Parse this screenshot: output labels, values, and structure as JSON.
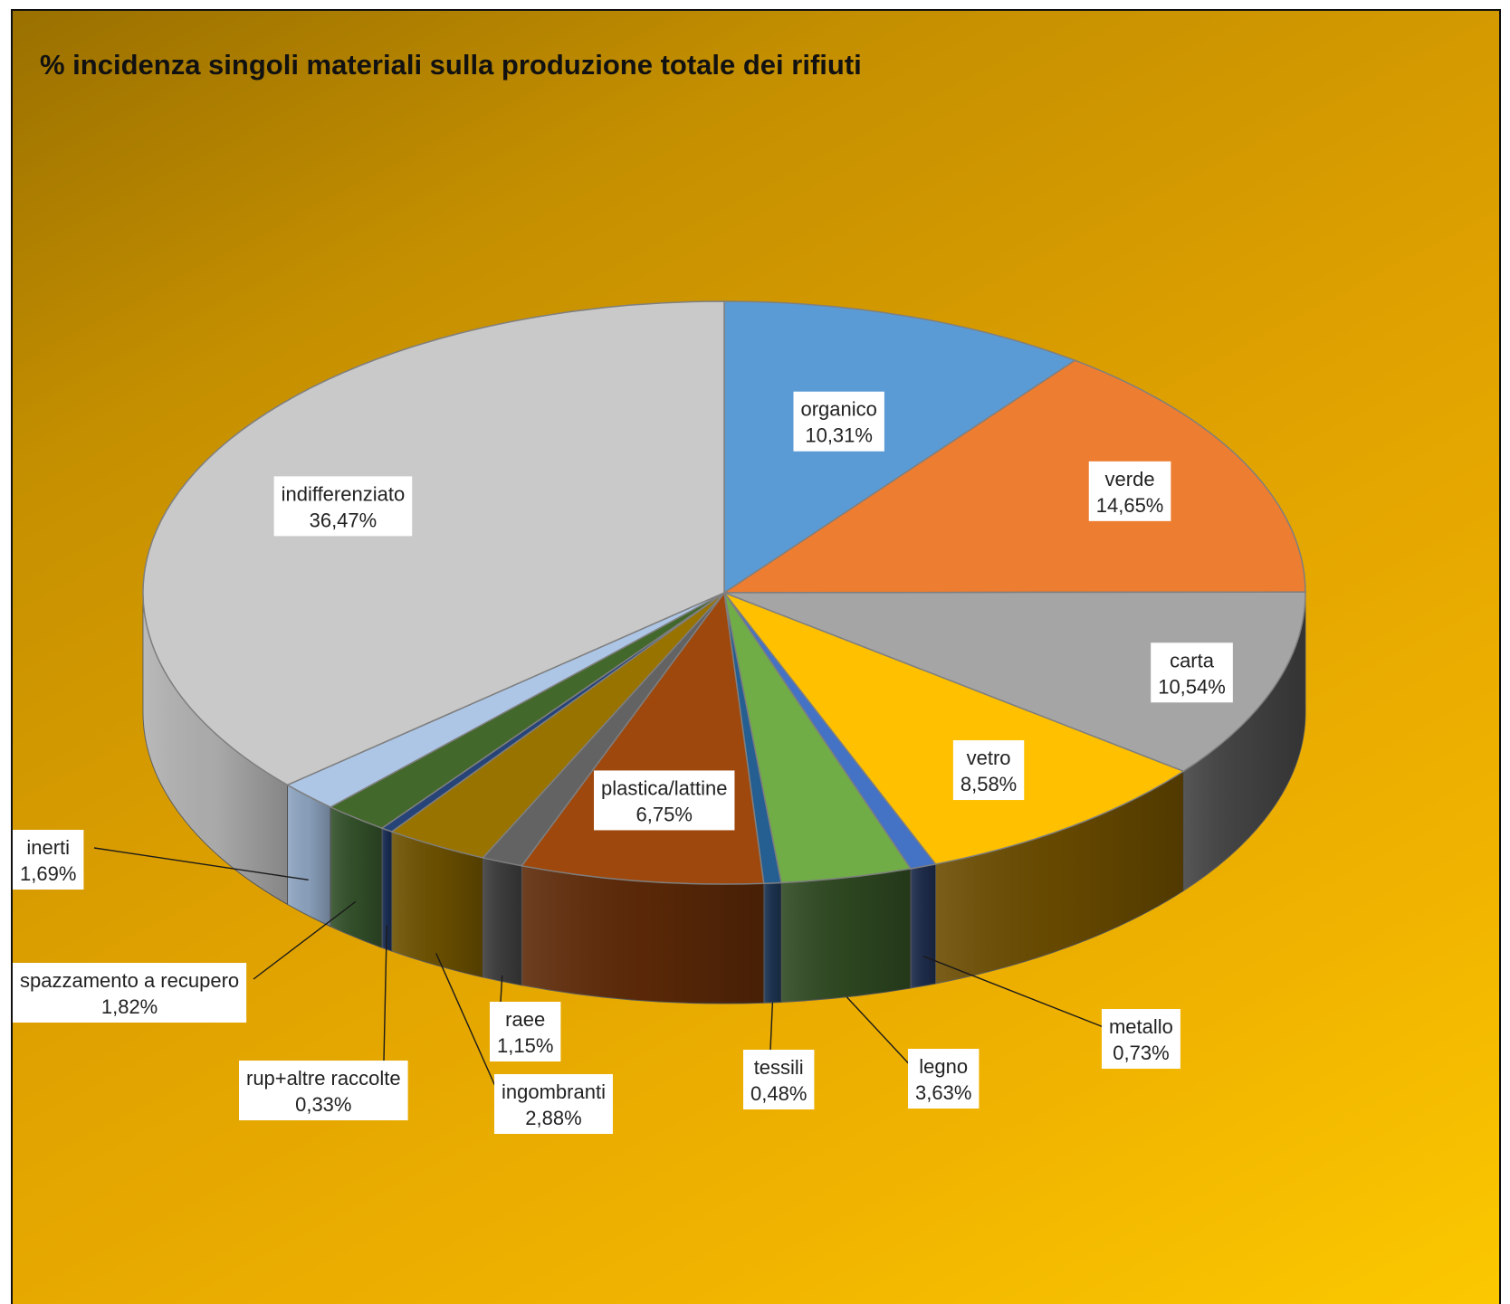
{
  "chart_data": {
    "type": "pie",
    "title": "% incidenza singoli materiali sulla produzione totale dei rifiuti",
    "style": "3d",
    "slices": [
      {
        "name": "organico",
        "value": 10.31,
        "label": "10,31%",
        "color": "#5b9bd5",
        "side_color": "#3d6e9a"
      },
      {
        "name": "verde",
        "value": 14.65,
        "label": "14,65%",
        "color": "#ed7d31",
        "side_color": "#a9561f"
      },
      {
        "name": "carta",
        "value": 10.54,
        "label": "10,54%",
        "color": "#a5a5a5",
        "side_color": "#444444"
      },
      {
        "name": "vetro",
        "value": 8.58,
        "label": "8,58%",
        "color": "#ffc000",
        "side_color": "#6b4c00"
      },
      {
        "name": "metallo",
        "value": 0.73,
        "label": "0,73%",
        "color": "#4472c4",
        "side_color": "#1f2d4d"
      },
      {
        "name": "legno",
        "value": 3.63,
        "label": "3,63%",
        "color": "#70ad47",
        "side_color": "#2f4a22"
      },
      {
        "name": "tessili",
        "value": 0.48,
        "label": "0,48%",
        "color": "#255e91",
        "side_color": "#1c3552"
      },
      {
        "name": "plastica/lattine",
        "value": 6.75,
        "label": "6,75%",
        "color": "#9e480e",
        "side_color": "#5e2a08"
      },
      {
        "name": "raee",
        "value": 1.15,
        "label": "1,15%",
        "color": "#636363",
        "side_color": "#3e3e3e"
      },
      {
        "name": "ingombranti",
        "value": 2.88,
        "label": "2,88%",
        "color": "#997300",
        "side_color": "#6e5200"
      },
      {
        "name": "rup+altre raccolte",
        "value": 0.33,
        "label": "0,33%",
        "color": "#264478",
        "side_color": "#1b2f55"
      },
      {
        "name": "spazzamento a recupero",
        "value": 1.82,
        "label": "1,82%",
        "color": "#43682b",
        "side_color": "#33512a"
      },
      {
        "name": "inerti",
        "value": 1.69,
        "label": "1,69%",
        "color": "#adc6e6",
        "side_color": "#8ea5c1"
      },
      {
        "name": "indifferenziato",
        "value": 36.47,
        "label": "36,47%",
        "color": "#c9c9c9",
        "side_color": "#b2b2b2"
      }
    ]
  }
}
